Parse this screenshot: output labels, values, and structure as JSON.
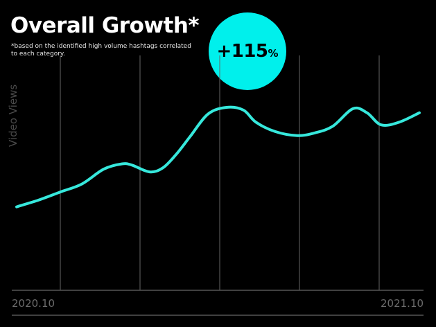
{
  "header": {
    "title": "Overall Growth*",
    "footnote": "*based on the identified high volume hashtags correlated to each category."
  },
  "badge": {
    "value": "+115",
    "unit": "%"
  },
  "colors": {
    "line": "#36e8dc",
    "badge": "#00f0ec",
    "gridline": "#666666",
    "axis": "#555555"
  },
  "chart_data": {
    "type": "line",
    "ylabel": "Video Views",
    "xlabel": "",
    "x_tick_labels": [
      "2020.10",
      "2021.10"
    ],
    "y_ticks_shown": false,
    "grid": "vertical",
    "x_range": [
      0,
      1
    ],
    "ylim": [
      0,
      100
    ],
    "series": [
      {
        "x": [
          0.0,
          0.054,
          0.108,
          0.162,
          0.216,
          0.262,
          0.287,
          0.33,
          0.363,
          0.396,
          0.43,
          0.475,
          0.521,
          0.563,
          0.594,
          0.642,
          0.697,
          0.74,
          0.785,
          0.835,
          0.87,
          0.905,
          0.95,
          1.0
        ],
        "y": [
          26,
          31,
          37,
          43,
          54,
          58,
          57,
          52,
          55,
          65,
          78,
          95,
          100,
          98,
          89,
          82,
          79,
          81,
          86,
          99,
          96,
          87,
          89,
          96
        ]
      }
    ]
  }
}
